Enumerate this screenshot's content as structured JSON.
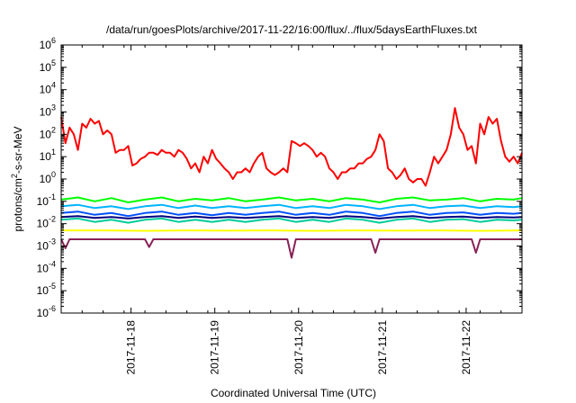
{
  "chart_data": {
    "type": "line",
    "title": "/data/run/goesPlots/archive/2017-11-22/16:00/flux/../flux/5daysEarthFluxes.txt",
    "xlabel": "Coordinated Universal Time (UTC)",
    "ylabel": {
      "prefix": "protons/cm",
      "sup": "2",
      "suffix": "-s-sr-MeV"
    },
    "yscale": "log",
    "ylim_exp": [
      -6,
      6
    ],
    "y_ticks": [
      {
        "base": "10",
        "exp": "-6"
      },
      {
        "base": "10",
        "exp": "-5"
      },
      {
        "base": "10",
        "exp": "-4"
      },
      {
        "base": "10",
        "exp": "-3"
      },
      {
        "base": "10",
        "exp": "-2"
      },
      {
        "base": "10",
        "exp": "-1"
      },
      {
        "base": "10",
        "exp": "0"
      },
      {
        "base": "10",
        "exp": "1"
      },
      {
        "base": "10",
        "exp": "2"
      },
      {
        "base": "10",
        "exp": "3"
      },
      {
        "base": "10",
        "exp": "4"
      },
      {
        "base": "10",
        "exp": "5"
      },
      {
        "base": "10",
        "exp": "6"
      }
    ],
    "x_range": [
      "2017-11-17 04:00",
      "2017-11-22 16:00"
    ],
    "x_ticks": [
      "2017-11-18",
      "2017-11-19",
      "2017-11-20",
      "2017-11-21",
      "2017-11-22"
    ],
    "grid": false,
    "legend": "none",
    "series": [
      {
        "color": "#ff0000",
        "x_days": [
          0.0,
          0.05,
          0.1,
          0.15,
          0.2,
          0.25,
          0.3,
          0.35,
          0.4,
          0.45,
          0.5,
          0.55,
          0.6,
          0.65,
          0.7,
          0.75,
          0.8,
          0.85,
          0.9,
          0.95,
          1.0,
          1.05,
          1.1,
          1.15,
          1.2,
          1.25,
          1.3,
          1.35,
          1.4,
          1.45,
          1.5,
          1.55,
          1.6,
          1.65,
          1.7,
          1.75,
          1.8,
          1.85,
          1.9,
          1.95,
          2.0,
          2.05,
          2.1,
          2.15,
          2.2,
          2.25,
          2.3,
          2.35,
          2.4,
          2.45,
          2.5,
          2.55,
          2.6,
          2.65,
          2.7,
          2.75,
          2.8,
          2.85,
          2.9,
          2.95,
          3.0,
          3.05,
          3.1,
          3.15,
          3.2,
          3.25,
          3.3,
          3.35,
          3.4,
          3.45,
          3.5,
          3.55,
          3.6,
          3.65,
          3.7,
          3.75,
          3.8,
          3.85,
          3.9,
          3.95,
          4.0,
          4.05,
          4.1,
          4.15,
          4.2,
          4.25,
          4.3,
          4.35,
          4.4,
          4.45,
          4.5,
          4.55,
          4.6,
          4.65,
          4.7,
          4.75,
          4.8,
          4.85,
          4.9,
          4.95,
          5.0,
          5.05,
          5.1,
          5.15,
          5.2,
          5.25,
          5.3,
          5.35,
          5.4,
          5.45,
          5.5
        ],
        "values": [
          600,
          40,
          200,
          100,
          20,
          300,
          200,
          500,
          300,
          400,
          100,
          150,
          100,
          15,
          20,
          20,
          30,
          4,
          5,
          8,
          10,
          15,
          15,
          12,
          20,
          15,
          15,
          10,
          20,
          15,
          8,
          3,
          5,
          2,
          10,
          5,
          20,
          8,
          5,
          3,
          2,
          1,
          2,
          2,
          3,
          2,
          5,
          10,
          15,
          3,
          2,
          1.5,
          2,
          3,
          2,
          50,
          40,
          30,
          40,
          30,
          20,
          10,
          15,
          10,
          3,
          2,
          1,
          2,
          2,
          3,
          3,
          5,
          5,
          8,
          10,
          20,
          100,
          50,
          3,
          2,
          1,
          1.5,
          3,
          1,
          0.7,
          1,
          1,
          0.5,
          2,
          10,
          5,
          10,
          20,
          100,
          1500,
          200,
          100,
          20,
          30,
          5,
          300,
          100,
          600,
          300,
          500,
          50,
          10,
          6,
          10,
          5,
          15
        ]
      },
      {
        "color": "#00ff00",
        "x_days": [
          0.0,
          0.2,
          0.4,
          0.6,
          0.8,
          1.0,
          1.2,
          1.4,
          1.6,
          1.8,
          2.0,
          2.2,
          2.4,
          2.6,
          2.8,
          3.0,
          3.2,
          3.4,
          3.6,
          3.8,
          4.0,
          4.2,
          4.4,
          4.6,
          4.8,
          5.0,
          5.2,
          5.4,
          5.5
        ],
        "values": [
          0.12,
          0.15,
          0.1,
          0.14,
          0.09,
          0.12,
          0.15,
          0.1,
          0.13,
          0.11,
          0.14,
          0.1,
          0.12,
          0.15,
          0.11,
          0.13,
          0.1,
          0.14,
          0.12,
          0.09,
          0.13,
          0.15,
          0.11,
          0.12,
          0.14,
          0.1,
          0.13,
          0.12,
          0.14
        ]
      },
      {
        "color": "#00b4ff",
        "x_days": [
          0.0,
          0.2,
          0.4,
          0.6,
          0.8,
          1.0,
          1.2,
          1.4,
          1.6,
          1.8,
          2.0,
          2.2,
          2.4,
          2.6,
          2.8,
          3.0,
          3.2,
          3.4,
          3.6,
          3.8,
          4.0,
          4.2,
          4.4,
          4.6,
          4.8,
          5.0,
          5.2,
          5.4,
          5.5
        ],
        "values": [
          0.06,
          0.07,
          0.05,
          0.06,
          0.045,
          0.06,
          0.07,
          0.05,
          0.065,
          0.05,
          0.06,
          0.05,
          0.06,
          0.07,
          0.05,
          0.06,
          0.05,
          0.07,
          0.06,
          0.045,
          0.06,
          0.07,
          0.05,
          0.06,
          0.065,
          0.05,
          0.06,
          0.055,
          0.06
        ]
      },
      {
        "color": "#0050ff",
        "x_days": [
          0.0,
          0.2,
          0.4,
          0.6,
          0.8,
          1.0,
          1.2,
          1.4,
          1.6,
          1.8,
          2.0,
          2.2,
          2.4,
          2.6,
          2.8,
          3.0,
          3.2,
          3.4,
          3.6,
          3.8,
          4.0,
          4.2,
          4.4,
          4.6,
          4.8,
          5.0,
          5.2,
          5.4,
          5.5
        ],
        "values": [
          0.03,
          0.035,
          0.025,
          0.03,
          0.022,
          0.03,
          0.035,
          0.025,
          0.03,
          0.024,
          0.03,
          0.025,
          0.03,
          0.035,
          0.025,
          0.03,
          0.025,
          0.035,
          0.03,
          0.022,
          0.03,
          0.035,
          0.025,
          0.03,
          0.032,
          0.025,
          0.03,
          0.028,
          0.03
        ]
      },
      {
        "color": "#00cc99",
        "x_days": [
          0.0,
          0.2,
          0.4,
          0.6,
          0.8,
          1.0,
          1.2,
          1.4,
          1.6,
          1.8,
          2.0,
          2.2,
          2.4,
          2.6,
          2.8,
          3.0,
          3.2,
          3.4,
          3.6,
          3.8,
          4.0,
          4.2,
          4.4,
          4.6,
          4.8,
          5.0,
          5.2,
          5.4,
          5.5
        ],
        "values": [
          0.015,
          0.017,
          0.012,
          0.015,
          0.011,
          0.015,
          0.017,
          0.012,
          0.015,
          0.012,
          0.015,
          0.012,
          0.015,
          0.017,
          0.012,
          0.015,
          0.012,
          0.017,
          0.015,
          0.011,
          0.015,
          0.017,
          0.012,
          0.015,
          0.016,
          0.012,
          0.015,
          0.014,
          0.015
        ]
      },
      {
        "color": "#000080",
        "x_days": [
          0.0,
          0.2,
          0.4,
          0.6,
          0.8,
          1.0,
          1.2,
          1.4,
          1.6,
          1.8,
          2.0,
          2.2,
          2.4,
          2.6,
          2.8,
          3.0,
          3.2,
          3.4,
          3.6,
          3.8,
          4.0,
          4.2,
          4.4,
          4.6,
          4.8,
          5.0,
          5.2,
          5.4,
          5.5
        ],
        "values": [
          0.02,
          0.022,
          0.018,
          0.02,
          0.017,
          0.02,
          0.022,
          0.018,
          0.021,
          0.018,
          0.02,
          0.018,
          0.02,
          0.022,
          0.018,
          0.02,
          0.018,
          0.022,
          0.02,
          0.017,
          0.02,
          0.022,
          0.018,
          0.02,
          0.021,
          0.018,
          0.02,
          0.019,
          0.02
        ]
      },
      {
        "color": "#ffff00",
        "x_days": [
          0.0,
          0.5,
          1.0,
          1.5,
          2.0,
          2.5,
          3.0,
          3.5,
          4.0,
          4.5,
          5.0,
          5.5
        ],
        "values": [
          0.005,
          0.005,
          0.0048,
          0.005,
          0.0049,
          0.005,
          0.0048,
          0.005,
          0.0049,
          0.005,
          0.0048,
          0.005
        ]
      },
      {
        "color": "#882255",
        "x_days": [
          0.0,
          0.05,
          0.1,
          0.15,
          0.5,
          1.0,
          1.05,
          1.1,
          1.15,
          1.5,
          2.0,
          2.5,
          2.7,
          2.75,
          2.8,
          3.0,
          3.5,
          3.7,
          3.75,
          3.8,
          4.0,
          4.2,
          4.5,
          4.9,
          4.95,
          5.0,
          5.5
        ],
        "values": [
          0.002,
          0.0008,
          0.002,
          0.002,
          0.002,
          0.002,
          0.0009,
          0.002,
          0.002,
          0.002,
          0.002,
          0.002,
          0.002,
          0.0003,
          0.002,
          0.002,
          0.002,
          0.002,
          0.0005,
          0.002,
          0.002,
          0.002,
          0.002,
          0.002,
          0.0005,
          0.002,
          0.002
        ]
      }
    ]
  }
}
